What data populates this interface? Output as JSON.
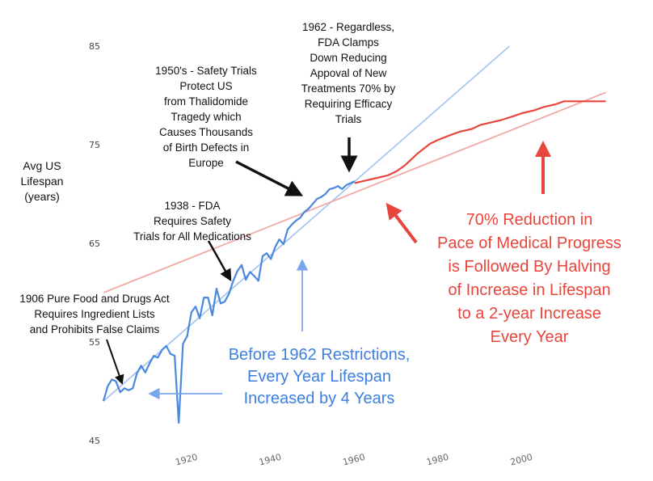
{
  "chart_data": {
    "type": "line",
    "title": "",
    "xlabel": "",
    "ylabel": [
      "Avg US",
      "Lifespan",
      "(years)"
    ],
    "xlim": [
      1900,
      2022
    ],
    "ylim": [
      45,
      85
    ],
    "x_ticks": [
      1920,
      1940,
      1960,
      1980,
      2000
    ],
    "y_ticks": [
      45,
      55,
      65,
      75,
      85
    ],
    "grid": false,
    "colors": {
      "blue": "#4a88e0",
      "red": "#e8453c",
      "trend_blue": "#a8c8f0",
      "trend_red": "#f1aaa6"
    },
    "series": [
      {
        "color": "blue",
        "x": [
          1900,
          1901,
          1902,
          1903,
          1904,
          1905,
          1906,
          1907,
          1908,
          1909,
          1910,
          1911,
          1912,
          1913,
          1914,
          1915,
          1916,
          1917,
          1918,
          1919,
          1920,
          1921,
          1922,
          1923,
          1924,
          1925,
          1926,
          1927,
          1928,
          1929,
          1930,
          1931,
          1932,
          1933,
          1934,
          1935,
          1936,
          1937,
          1938,
          1939,
          1940,
          1941,
          1942,
          1943,
          1944,
          1945,
          1946,
          1947,
          1948,
          1949,
          1950,
          1951,
          1952,
          1953,
          1954,
          1955,
          1956,
          1957,
          1958,
          1959,
          1960
        ],
        "values": [
          49.0,
          50.5,
          51.2,
          51.0,
          49.9,
          50.3,
          50.1,
          50.3,
          51.8,
          52.6,
          51.9,
          52.8,
          53.6,
          53.4,
          54.2,
          54.6,
          53.8,
          53.6,
          46.8,
          54.8,
          55.6,
          58.0,
          58.6,
          57.4,
          59.5,
          59.5,
          57.7,
          60.4,
          58.9,
          59.1,
          59.9,
          61.2,
          62.2,
          62.8,
          61.3,
          62.1,
          61.7,
          61.2,
          63.7,
          64.0,
          63.4,
          64.6,
          65.4,
          64.9,
          66.4,
          66.9,
          67.3,
          67.6,
          68.2,
          68.5,
          69.0,
          69.5,
          69.7,
          70.0,
          70.5,
          70.6,
          70.8,
          70.5,
          70.9,
          71.1,
          71.3
        ]
      },
      {
        "color": "red",
        "x": [
          1960,
          1962,
          1965,
          1968,
          1970,
          1972,
          1975,
          1978,
          1980,
          1983,
          1985,
          1988,
          1990,
          1993,
          1995,
          1998,
          2000,
          2003,
          2005,
          2008,
          2010,
          2015,
          2020
        ],
        "values": [
          71.1,
          71.3,
          71.6,
          71.9,
          72.3,
          72.9,
          74.1,
          75.1,
          75.5,
          76.0,
          76.3,
          76.6,
          77.0,
          77.3,
          77.5,
          77.9,
          78.2,
          78.5,
          78.8,
          79.1,
          79.4,
          79.4,
          79.4
        ]
      }
    ],
    "trend_lines": [
      {
        "color": "trend_blue",
        "x": [
          1900,
          1997
        ],
        "values": [
          49.0,
          85.0
        ]
      },
      {
        "color": "trend_red",
        "x": [
          1900,
          2020
        ],
        "values": [
          60.0,
          80.3
        ]
      }
    ],
    "annotations": {
      "a1906": [
        "1906 Pure Food and Drugs Act",
        "Requires Ingredient Lists",
        "and Prohibits False Claims"
      ],
      "a1938": [
        "1938 - FDA",
        "Requires Safety",
        "Trials for All Medications"
      ],
      "a1950": [
        "1950's - Safety Trials",
        "Protect US",
        "from Thalidomide",
        "Tragedy which",
        "Causes Thousands",
        "of Birth Defects in",
        "Europe"
      ],
      "a1962": [
        "1962 - Regardless,",
        "FDA Clamps",
        "Down Reducing",
        "Appoval of New",
        "Treatments 70% by",
        "Requiring Efficacy",
        "Trials"
      ],
      "blue_callout": [
        "Before 1962 Restrictions,",
        "Every Year Lifespan",
        "Increased by 4 Years"
      ],
      "red_callout": [
        "70% Reduction in",
        "Pace of Medical Progress",
        "is Followed By Halving",
        "of Increase in Lifespan",
        "to a 2-year Increase",
        "Every Year"
      ]
    }
  }
}
